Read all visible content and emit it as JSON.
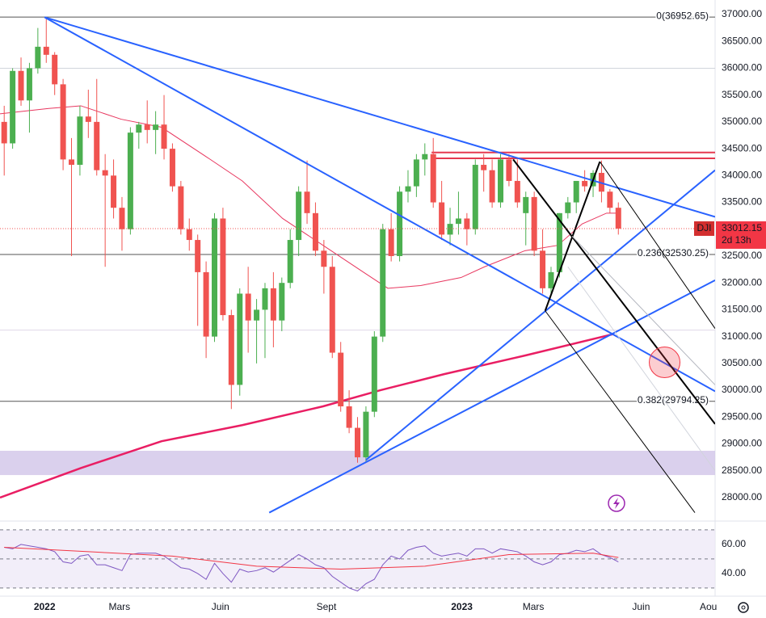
{
  "chart_data": {
    "type": "candlestick",
    "symbol": "DJI",
    "price_label": "33012.15",
    "countdown": "2d 13h",
    "xlim": [
      -0.5,
      84.5
    ],
    "xticks": [
      {
        "value": 4.8,
        "label": "2022"
      },
      {
        "value": 13.7,
        "label": "Mars"
      },
      {
        "value": 25.7,
        "label": "Juin"
      },
      {
        "value": 38.3,
        "label": "Sept"
      },
      {
        "value": 54.4,
        "label": "2023"
      },
      {
        "value": 62.9,
        "label": "Mars"
      },
      {
        "value": 75.7,
        "label": "Juin"
      },
      {
        "value": 83.7,
        "label": "Aou"
      }
    ],
    "ylim": [
      27638,
      37271
    ],
    "yticks": [
      {
        "value": 28000,
        "label": "28000.00"
      },
      {
        "value": 28500,
        "label": "28500.00"
      },
      {
        "value": 29000,
        "label": "29000.00"
      },
      {
        "value": 29500,
        "label": "29500.00"
      },
      {
        "value": 30000,
        "label": "30000.00"
      },
      {
        "value": 30500,
        "label": "30500.00"
      },
      {
        "value": 31000,
        "label": "31000.00"
      },
      {
        "value": 31500,
        "label": "31500.00"
      },
      {
        "value": 32000,
        "label": "32000.00"
      },
      {
        "value": 32500,
        "label": "32500.00"
      },
      {
        "value": 33000,
        "label": "33000.00"
      },
      {
        "value": 33500,
        "label": "33500.00"
      },
      {
        "value": 34000,
        "label": "34000.00"
      },
      {
        "value": 34500,
        "label": "34500.00"
      },
      {
        "value": 35000,
        "label": "35000.00"
      },
      {
        "value": 35500,
        "label": "35500.00"
      },
      {
        "value": 36000,
        "label": "36000.00"
      },
      {
        "value": 36500,
        "label": "36500.00"
      },
      {
        "value": 37000,
        "label": "37000.00"
      }
    ],
    "up_color": "#4caf50",
    "down_color": "#f05350",
    "open": [
      35000,
      34600,
      35950,
      35400,
      36000,
      36400,
      36250,
      35700,
      34300,
      34200,
      35100,
      35000,
      34100,
      34000,
      33400,
      33000,
      34800,
      34950,
      34850,
      34950,
      34500,
      33800,
      33000,
      32800,
      32200,
      31000,
      33200,
      31400,
      30100,
      31800,
      31300,
      31500,
      31900,
      31300,
      32000,
      32800,
      33700,
      33300,
      32600,
      32300,
      30700,
      29700,
      29300,
      28750,
      29600,
      31000,
      33000,
      32500,
      33700,
      33800,
      34300,
      34400,
      33500,
      32900,
      33100,
      33200,
      33000,
      34200,
      34100,
      33500,
      34300,
      33900,
      33300,
      33600,
      32600,
      31900,
      32200,
      33300,
      33500,
      33900,
      33800,
      34050,
      33700,
      33400
    ],
    "high": [
      35300,
      36000,
      36200,
      36100,
      36750,
      36950,
      36300,
      35800,
      34700,
      35300,
      35600,
      35800,
      34400,
      34300,
      33600,
      34900,
      35000,
      35400,
      35200,
      35500,
      34600,
      33900,
      33200,
      32900,
      32400,
      33300,
      33400,
      31500,
      31900,
      32300,
      31700,
      32000,
      32200,
      32100,
      33000,
      33800,
      34280,
      33500,
      32800,
      32500,
      30900,
      30000,
      29500,
      29700,
      31100,
      33100,
      33300,
      33800,
      34100,
      34400,
      34600,
      34700,
      33900,
      33400,
      33700,
      33300,
      34300,
      34400,
      34300,
      34400,
      34400,
      34300,
      33700,
      33700,
      33000,
      32300,
      33300,
      33600,
      33900,
      34100,
      34100,
      34280,
      33750,
      33500
    ],
    "low": [
      34000,
      34500,
      35300,
      34800,
      35900,
      36100,
      35500,
      34100,
      32500,
      34000,
      34700,
      34000,
      32300,
      33200,
      32600,
      32900,
      34500,
      34600,
      34400,
      34300,
      33700,
      32900,
      32600,
      31200,
      30600,
      30900,
      31300,
      29650,
      29900,
      30700,
      30500,
      30600,
      30800,
      31100,
      31900,
      32500,
      33100,
      32500,
      31800,
      30600,
      29600,
      29200,
      28650,
      28650,
      29500,
      30900,
      32400,
      32400,
      33500,
      33600,
      34000,
      33400,
      32800,
      32700,
      32900,
      32700,
      32900,
      33700,
      33400,
      33400,
      33800,
      33400,
      32700,
      32500,
      31800,
      31800,
      32100,
      33200,
      33300,
      33700,
      33600,
      33500,
      33300,
      32900
    ],
    "close": [
      34600,
      35950,
      35400,
      36000,
      36400,
      36250,
      35700,
      34300,
      34200,
      35100,
      35000,
      34100,
      34000,
      33400,
      33000,
      34800,
      34950,
      34850,
      34950,
      34500,
      33800,
      33000,
      32800,
      32200,
      31000,
      33200,
      31400,
      30100,
      31800,
      31300,
      31500,
      31900,
      31300,
      32000,
      32800,
      33700,
      33300,
      32600,
      32300,
      30700,
      29700,
      29300,
      28750,
      29600,
      31000,
      33000,
      32500,
      33700,
      33800,
      34300,
      34400,
      33500,
      32900,
      33100,
      33200,
      33000,
      34200,
      34100,
      33500,
      34300,
      33900,
      33500,
      33600,
      32600,
      31900,
      32200,
      33300,
      33500,
      33900,
      33800,
      34050,
      33700,
      33400,
      33012.15
    ],
    "overlays": [
      {
        "color": "#e91e63",
        "width": 2.5,
        "x": [
          -0.5,
          9.1,
          18.7,
          28.3,
          37.9,
          44.7,
          52.3,
          62,
          72.5
        ],
        "values": [
          28000,
          28550,
          29050,
          29350,
          29700,
          30000,
          30300,
          30650,
          31050
        ]
      },
      {
        "color": "#e8375f",
        "width": 1,
        "x": [
          -0.5,
          5.3,
          9.1,
          13.9,
          18.7,
          24.5,
          28.3,
          33.1,
          37.9,
          42.7,
          45.6,
          49.5,
          54.3,
          57.1,
          61.9,
          65.8,
          68.7,
          71.6,
          73
        ]
      },
      {
        "color": "#e8375f",
        "width": 1
      }
    ],
    "ma20": [
      35150,
      35250,
      35300,
      35050,
      34900,
      34300,
      33900,
      33200,
      32700,
      32200,
      31900,
      31950,
      32100,
      32300,
      32600,
      32700,
      33100,
      33300,
      33300
    ],
    "levels": [
      {
        "value": 36952.65,
        "label": "0(36952.65)"
      },
      {
        "value": 32530.25,
        "label": "0.236(32530.25)"
      },
      {
        "value": 29794.25,
        "label": "0.382(29794.25)"
      }
    ],
    "hlines": [
      {
        "value": 36000,
        "color": "#d1d4dc"
      },
      {
        "value": 31120,
        "color": "#e0d8e8"
      },
      {
        "value": 34430,
        "color": "#e53950",
        "from": 50.8
      },
      {
        "value": 34320,
        "color": "#e53950",
        "from": 50.8
      }
    ],
    "band": {
      "range": [
        28420,
        28872
      ],
      "color": "#d1c4e9"
    },
    "trendlines": [
      {
        "color": "#2962ff",
        "width": 2,
        "points": [
          [
            4.8,
            36950
          ],
          [
            84.5,
            33230
          ]
        ]
      },
      {
        "color": "#2962ff",
        "width": 2,
        "points": [
          [
            4.8,
            36950
          ],
          [
            84.5,
            29980
          ]
        ]
      },
      {
        "color": "#2962ff",
        "width": 2,
        "points": [
          [
            31.5,
            27720
          ],
          [
            84.5,
            32050
          ]
        ]
      },
      {
        "color": "#2962ff",
        "width": 2,
        "points": [
          [
            43,
            28700
          ],
          [
            84.5,
            34100
          ]
        ]
      },
      {
        "color": "#000000",
        "width": 2,
        "points": [
          [
            60.5,
            34300
          ],
          [
            84.5,
            29370
          ]
        ]
      },
      {
        "color": "#000000",
        "width": 2,
        "points": [
          [
            64.3,
            31480
          ],
          [
            70.8,
            34260
          ]
        ]
      },
      {
        "color": "#000000",
        "width": 1,
        "points": [
          [
            70.8,
            34260
          ],
          [
            84.5,
            31150
          ]
        ]
      },
      {
        "color": "#000000",
        "width": 1,
        "points": [
          [
            64.3,
            31480
          ],
          [
            82.1,
            27720
          ]
        ]
      },
      {
        "color": "#b2b5be",
        "width": 1,
        "points": [
          [
            67.5,
            32870
          ],
          [
            84.5,
            30100
          ]
        ]
      },
      {
        "color": "#d1d4dc",
        "width": 1,
        "points": [
          [
            67,
            32300
          ],
          [
            84.5,
            28500
          ]
        ]
      }
    ],
    "circle": {
      "x": 78.5,
      "y": 30520,
      "color": "#f23645"
    },
    "rsi": {
      "ylim": [
        24.4,
        74.4
      ],
      "yticks": [
        {
          "value": 40,
          "label": "40.00"
        },
        {
          "value": 60,
          "label": "60.00"
        }
      ],
      "levels": [
        30,
        50,
        70
      ],
      "color": "#7e57c2",
      "values": [
        58,
        57,
        60,
        59,
        58,
        57,
        55,
        48,
        47,
        52,
        53,
        46,
        46,
        44,
        42,
        53,
        54,
        54,
        54,
        52,
        48,
        44,
        43,
        40,
        36,
        47,
        40,
        34,
        43,
        41,
        42,
        44,
        41,
        45,
        49,
        53,
        50,
        46,
        44,
        38,
        34,
        30,
        28,
        33,
        36,
        46,
        52,
        50,
        56,
        58,
        59,
        54,
        52,
        53,
        54,
        52,
        57,
        57,
        54,
        57,
        56,
        55,
        52,
        48,
        46,
        48,
        53,
        54,
        56,
        55,
        57,
        53,
        51,
        48
      ],
      "signal": {
        "color": "#f23645",
        "x": [
          0,
          10,
          20,
          30,
          40,
          50,
          60,
          70,
          73
        ],
        "values": [
          58,
          55,
          52,
          45,
          43,
          45,
          53,
          54,
          51
        ]
      }
    }
  }
}
